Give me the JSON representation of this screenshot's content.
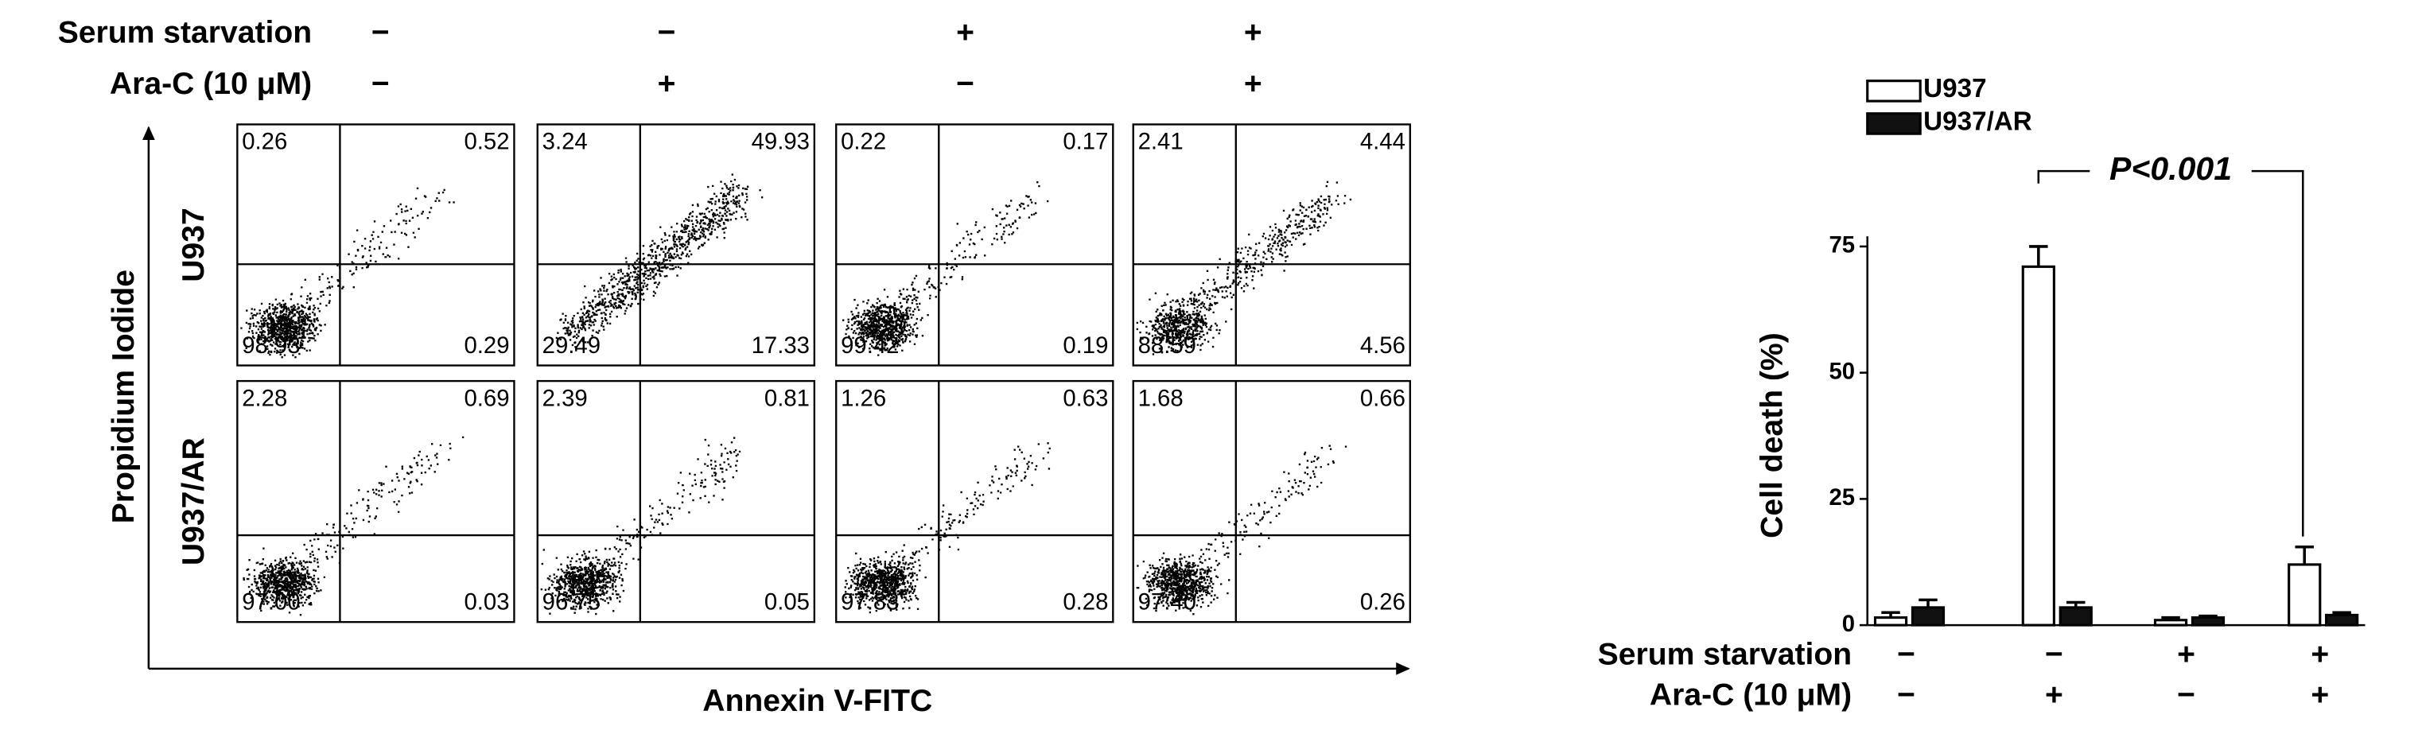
{
  "left_figure": {
    "conditions": [
      {
        "label": "Serum starvation",
        "signs": [
          "−",
          "−",
          "+",
          "+"
        ]
      },
      {
        "label": "Ara-C (10 μM)",
        "signs": [
          "−",
          "+",
          "−",
          "+"
        ]
      }
    ],
    "y_axis_label": "Propidium Iodide",
    "x_axis_label": "Annexin V-FITC",
    "rows": [
      {
        "label": "U937",
        "panels": [
          [
            "0.26",
            "0.52",
            "98.93",
            "0.29"
          ],
          [
            "3.24",
            "49.93",
            "29.49",
            "17.33"
          ],
          [
            "0.22",
            "0.17",
            "99.42",
            "0.19"
          ],
          [
            "2.41",
            "4.44",
            "88.59",
            "4.56"
          ]
        ]
      },
      {
        "label": "U937/AR",
        "panels": [
          [
            "2.28",
            "0.69",
            "97.00",
            "0.03"
          ],
          [
            "2.39",
            "0.81",
            "96.75",
            "0.05"
          ],
          [
            "1.26",
            "0.63",
            "97.83",
            "0.28"
          ],
          [
            "1.68",
            "0.66",
            "97.40",
            "0.26"
          ]
        ]
      }
    ]
  },
  "chart_data": {
    "type": "bar",
    "y_axis_label": "Cell death (%)",
    "annotation": "P<0.001",
    "categories": [
      null,
      null,
      null,
      null
    ],
    "condition_rows": [
      {
        "label": "Serum starvation",
        "signs": [
          "−",
          "−",
          "+",
          "+"
        ]
      },
      {
        "label": "Ara-C (10 μM)",
        "signs": [
          "−",
          "+",
          "−",
          "+"
        ]
      }
    ],
    "series": [
      {
        "name": "U937",
        "color": "#ffffff",
        "values": [
          1.5,
          71,
          1,
          12
        ],
        "error": [
          1,
          4,
          0.5,
          3.5
        ]
      },
      {
        "name": "U937/AR",
        "color": "#111111",
        "values": [
          3.5,
          3.5,
          1.5,
          2
        ],
        "error": [
          1.5,
          1,
          0.3,
          0.5
        ]
      }
    ],
    "ylim": [
      0,
      77
    ],
    "yticks": [
      0,
      25,
      50,
      75
    ]
  }
}
